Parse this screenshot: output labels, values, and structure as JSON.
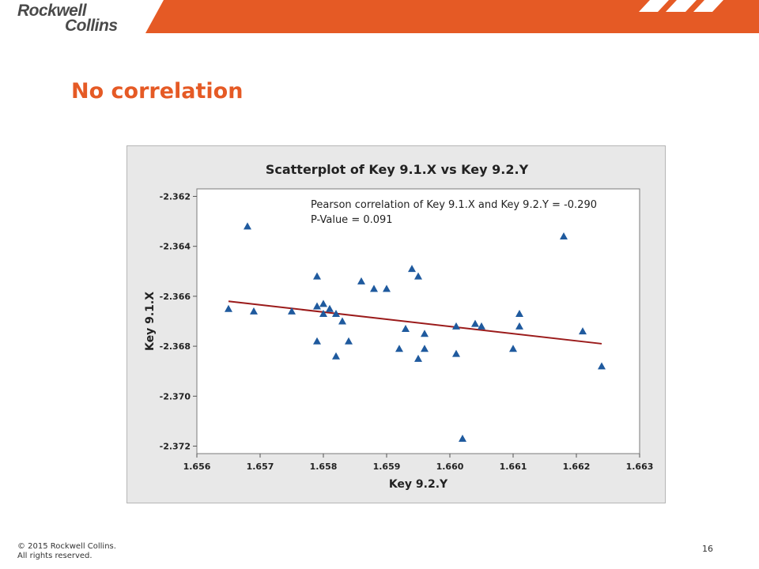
{
  "header": {
    "logo_line1": "Rockwell",
    "logo_line2": "Collins",
    "brand_color": "#e55a25"
  },
  "slide": {
    "title": "No correlation",
    "page_number": "16"
  },
  "footer": {
    "copyright_line1": "© 2015 Rockwell Collins.",
    "copyright_line2": "All rights reserved."
  },
  "chart_data": {
    "type": "scatter",
    "title": "Scatterplot of Key 9.1.X vs Key 9.2.Y",
    "xlabel": "Key 9.2.Y",
    "ylabel": "Key 9.1.X",
    "xlim": [
      1.656,
      1.663
    ],
    "ylim": [
      -2.3723,
      -2.3617
    ],
    "x_ticks": [
      "1.656",
      "1.657",
      "1.658",
      "1.659",
      "1.660",
      "1.661",
      "1.662",
      "1.663"
    ],
    "y_ticks": [
      "-2.362",
      "-2.364",
      "-2.366",
      "-2.368",
      "-2.370",
      "-2.372"
    ],
    "grid": false,
    "annotation_line1": "Pearson correlation of Key 9.1.X and Key 9.2.Y = -0.290",
    "annotation_line2": "P-Value = 0.091",
    "marker_color": "#1f5a9e",
    "fit_line_color": "#9b1b1b",
    "fit_line": {
      "x": [
        1.6565,
        1.6624
      ],
      "y": [
        -2.3662,
        -2.3679
      ]
    },
    "points": [
      {
        "x": 1.6565,
        "y": -2.3665
      },
      {
        "x": 1.6568,
        "y": -2.3632
      },
      {
        "x": 1.6569,
        "y": -2.3666
      },
      {
        "x": 1.6575,
        "y": -2.3666
      },
      {
        "x": 1.6579,
        "y": -2.3652
      },
      {
        "x": 1.6579,
        "y": -2.3664
      },
      {
        "x": 1.6579,
        "y": -2.3678
      },
      {
        "x": 1.658,
        "y": -2.3663
      },
      {
        "x": 1.658,
        "y": -2.3667
      },
      {
        "x": 1.6581,
        "y": -2.3665
      },
      {
        "x": 1.6582,
        "y": -2.3667
      },
      {
        "x": 1.6582,
        "y": -2.3684
      },
      {
        "x": 1.6583,
        "y": -2.367
      },
      {
        "x": 1.6584,
        "y": -2.3678
      },
      {
        "x": 1.6586,
        "y": -2.3654
      },
      {
        "x": 1.6588,
        "y": -2.3657
      },
      {
        "x": 1.659,
        "y": -2.3657
      },
      {
        "x": 1.6592,
        "y": -2.3681
      },
      {
        "x": 1.6593,
        "y": -2.3673
      },
      {
        "x": 1.6594,
        "y": -2.3649
      },
      {
        "x": 1.6595,
        "y": -2.3652
      },
      {
        "x": 1.6595,
        "y": -2.3685
      },
      {
        "x": 1.6596,
        "y": -2.3675
      },
      {
        "x": 1.6596,
        "y": -2.3681
      },
      {
        "x": 1.6601,
        "y": -2.3672
      },
      {
        "x": 1.6601,
        "y": -2.3683
      },
      {
        "x": 1.6602,
        "y": -2.3717
      },
      {
        "x": 1.6604,
        "y": -2.3671
      },
      {
        "x": 1.6605,
        "y": -2.3672
      },
      {
        "x": 1.661,
        "y": -2.3681
      },
      {
        "x": 1.6611,
        "y": -2.3672
      },
      {
        "x": 1.6611,
        "y": -2.3667
      },
      {
        "x": 1.6618,
        "y": -2.3636
      },
      {
        "x": 1.6621,
        "y": -2.3674
      },
      {
        "x": 1.6624,
        "y": -2.3688
      }
    ]
  }
}
